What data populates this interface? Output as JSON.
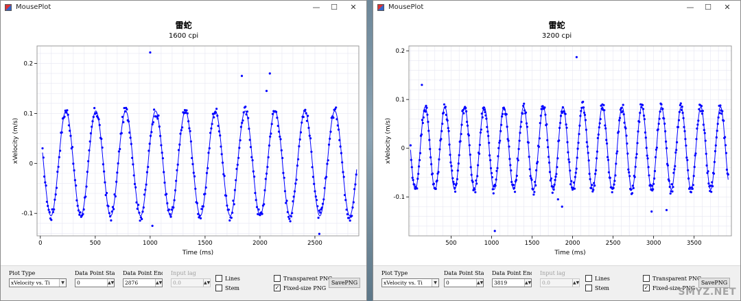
{
  "colors": {
    "series": "#0000ff",
    "grid": "#e6e6f2",
    "frame": "#999999"
  },
  "windows": [
    {
      "title": "MousePlot",
      "controls": {
        "plot_type_label": "Plot Type",
        "plot_type_value": "xVelocity vs. Ti",
        "start_label": "Data Point Start",
        "start_value": "0",
        "end_label": "Data Point End",
        "end_value": "2876",
        "input_lag_label": "Input lag",
        "input_lag_value": "0.0",
        "lines_label": "Lines",
        "lines_checked": false,
        "stem_label": "Stem",
        "stem_checked": false,
        "transparent_label": "Transparent PNG",
        "transparent_checked": false,
        "fixed_label": "Fixed-size PNG",
        "fixed_checked": true,
        "save_label": "SavePNG"
      }
    },
    {
      "title": "MousePlot",
      "controls": {
        "plot_type_label": "Plot Type",
        "plot_type_value": "xVelocity vs. Ti",
        "start_label": "Data Point Start",
        "start_value": "0",
        "end_label": "Data Point End",
        "end_value": "3819",
        "input_lag_label": "Input lag",
        "input_lag_value": "0.0",
        "lines_label": "Lines",
        "lines_checked": false,
        "stem_label": "Stem",
        "stem_checked": true,
        "transparent_label": "Transparent PNG",
        "transparent_checked": false,
        "fixed_label": "Fixed-size PNG",
        "fixed_checked": true,
        "save_label": "SavePNG"
      }
    }
  ],
  "watermark": "SMYZ.NET",
  "chart_data": [
    {
      "type": "scatter",
      "title": "雷蛇",
      "subtitle": "1600 cpi",
      "xlabel": "Time (ms)",
      "ylabel": "xVelocity (m/s)",
      "xlim": [
        -30,
        2900
      ],
      "ylim": [
        -0.145,
        0.235
      ],
      "xticks": [
        0,
        500,
        1000,
        1500,
        2000,
        2500
      ],
      "yticks": [
        -0.1,
        0,
        0.1,
        0.2
      ],
      "ytick_labels": [
        "-0.1",
        "0",
        "0.1",
        "0.2"
      ],
      "grid": true,
      "fit_line": true,
      "wave": {
        "start": 20,
        "end": 2880,
        "period": 272,
        "amplitude": 0.105,
        "offset": 0.0,
        "phase": -165
      },
      "outliers": [
        [
          1000,
          0.222
        ],
        [
          1835,
          0.175
        ],
        [
          2090,
          0.18
        ],
        [
          2060,
          0.145
        ],
        [
          2540,
          -0.141
        ],
        [
          1020,
          -0.125
        ]
      ]
    },
    {
      "type": "scatter",
      "title": "雷蛇",
      "subtitle": "3200 cpi",
      "xlabel": "Time (ms)",
      "ylabel": "xVelocity (m/s)",
      "xlim": [
        -20,
        3960
      ],
      "ylim": [
        -0.18,
        0.21
      ],
      "xticks": [
        500,
        1000,
        1500,
        2000,
        2500,
        3000,
        3500
      ],
      "yticks": [
        -0.1,
        0,
        0.1,
        0.2
      ],
      "ytick_labels": [
        "-0.1",
        "0",
        "0.1",
        "0.2"
      ],
      "grid": true,
      "fit_line": true,
      "wave": {
        "start": 0,
        "end": 3920,
        "period": 243,
        "amplitude": 0.085,
        "offset": 0.0,
        "phase": -120
      },
      "outliers": [
        [
          140,
          0.13
        ],
        [
          2050,
          0.187
        ],
        [
          1040,
          -0.17
        ],
        [
          1870,
          -0.12
        ],
        [
          2975,
          -0.13
        ],
        [
          3160,
          -0.127
        ],
        [
          1820,
          -0.105
        ]
      ]
    }
  ]
}
